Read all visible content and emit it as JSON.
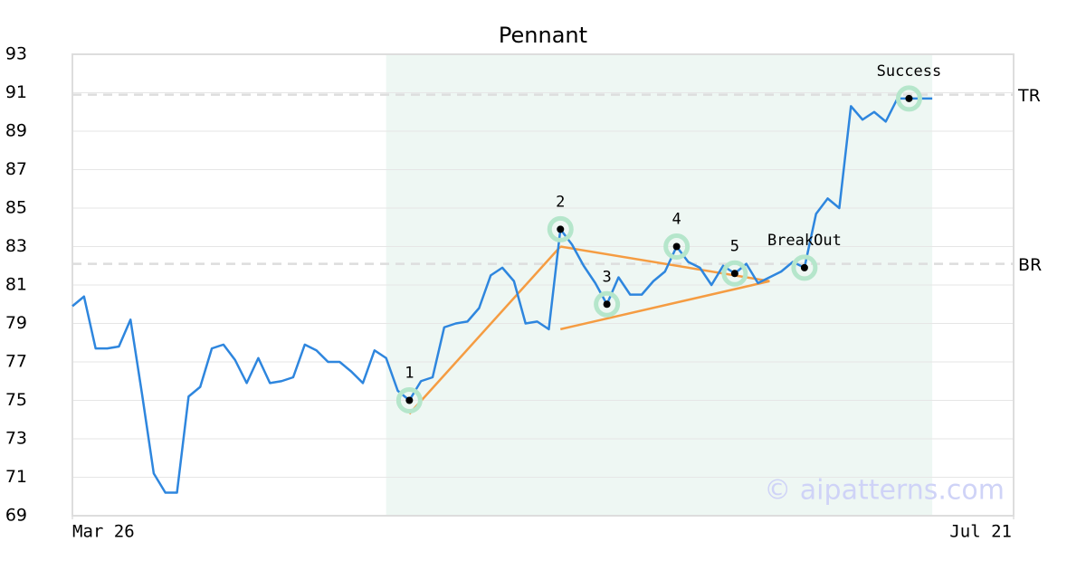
{
  "chart_data": {
    "type": "line",
    "title": "Pennant",
    "values": [
      79.9,
      80.4,
      77.7,
      77.7,
      77.8,
      79.2,
      75.3,
      71.2,
      70.2,
      70.2,
      75.2,
      75.7,
      77.7,
      77.9,
      77.1,
      75.9,
      77.2,
      75.9,
      76.0,
      76.2,
      77.9,
      77.6,
      77.0,
      77.0,
      76.5,
      75.9,
      77.6,
      77.2,
      75.5,
      75.0,
      76.0,
      76.2,
      78.8,
      79.0,
      79.1,
      79.8,
      81.5,
      81.9,
      81.2,
      79.0,
      79.1,
      78.7,
      83.9,
      83.1,
      82.0,
      81.1,
      80.0,
      81.4,
      80.5,
      80.5,
      81.2,
      81.7,
      83.0,
      82.2,
      81.9,
      81.0,
      82.0,
      81.6,
      82.1,
      81.1,
      81.4,
      81.7,
      82.2,
      81.9,
      84.7,
      85.5,
      85.0,
      90.3,
      89.6,
      90.0,
      89.5,
      90.7,
      90.7,
      90.7,
      90.7
    ],
    "color": "#2e86de",
    "xlim": [
      0,
      81
    ],
    "xticks": [
      {
        "value": 0,
        "label": "Mar 26"
      },
      {
        "value": 81,
        "label": "Jul 21"
      }
    ],
    "ylim": [
      69,
      93
    ],
    "yticks": [
      69,
      71,
      73,
      75,
      77,
      79,
      81,
      83,
      85,
      87,
      89,
      91,
      93
    ],
    "grid": true,
    "highlight": [
      27,
      74
    ],
    "points": [
      {
        "label": "1",
        "index": 29,
        "value": 75.0
      },
      {
        "label": "2",
        "index": 42,
        "value": 83.9
      },
      {
        "label": "3",
        "index": 46,
        "value": 80.0
      },
      {
        "label": "4",
        "index": 52,
        "value": 83.0
      },
      {
        "label": "5",
        "index": 57,
        "value": 81.6
      },
      {
        "label": "BreakOut",
        "index": 63,
        "value": 81.9
      },
      {
        "label": "Success",
        "index": 72,
        "value": 90.7
      }
    ],
    "trendlines": [
      {
        "x": [
          29,
          42
        ],
        "values": [
          74.3,
          83.0
        ]
      },
      {
        "x": [
          42,
          60
        ],
        "values": [
          83.0,
          81.2
        ]
      },
      {
        "x": [
          42,
          60
        ],
        "values": [
          78.7,
          81.2
        ]
      }
    ],
    "trendline_color": "#f59c42",
    "levels": [
      {
        "label": "TR",
        "value": 90.9
      },
      {
        "label": "BR",
        "value": 82.1
      }
    ],
    "watermark": "© aipatterns.com"
  }
}
